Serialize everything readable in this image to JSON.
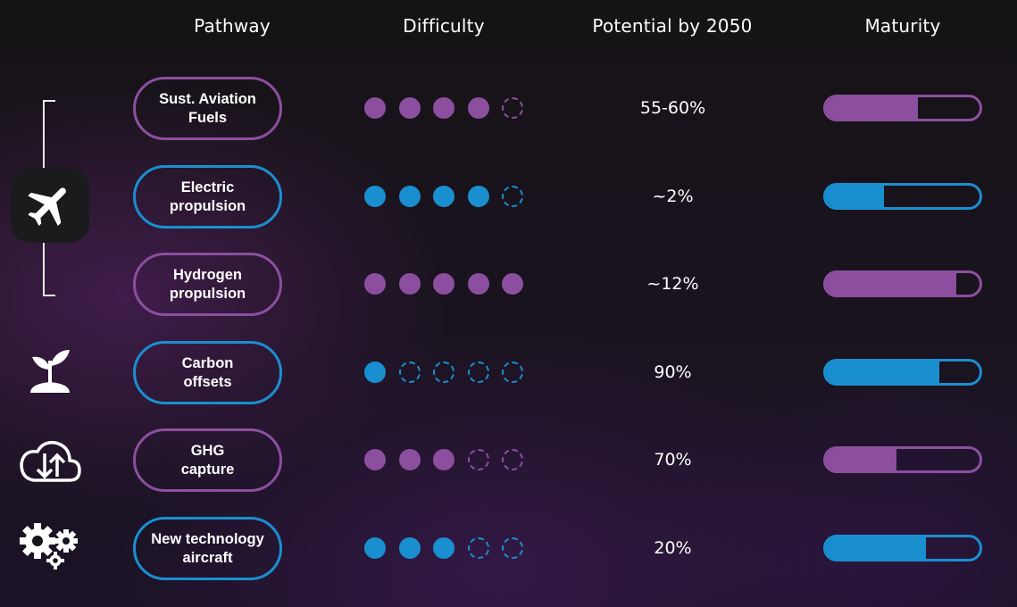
{
  "headers": {
    "pathway": "Pathway",
    "difficulty": "Difficulty",
    "potential": "Potential by 2050",
    "maturity": "Maturity"
  },
  "colors": {
    "purple": "#8c4fa0",
    "blue": "#1a8fd0",
    "text": "#ffffff"
  },
  "icons": [
    "airplane-icon",
    "plant-icon",
    "cloud-upload-download-icon",
    "gears-icon"
  ],
  "rows": [
    {
      "pathway": [
        "Sust. Aviation",
        "Fuels"
      ],
      "color": "purple",
      "difficulty_filled": 4,
      "difficulty_total": 5,
      "potential": "55-60%",
      "maturity": 0.6
    },
    {
      "pathway": [
        "Electric",
        "propulsion"
      ],
      "color": "blue",
      "difficulty_filled": 4,
      "difficulty_total": 5,
      "potential": "~2%",
      "maturity": 0.38
    },
    {
      "pathway": [
        "Hydrogen",
        "propulsion"
      ],
      "color": "purple",
      "difficulty_filled": 5,
      "difficulty_total": 5,
      "potential": "~12%",
      "maturity": 0.85
    },
    {
      "pathway": [
        "Carbon",
        "offsets"
      ],
      "color": "blue",
      "difficulty_filled": 1,
      "difficulty_total": 5,
      "potential": "90%",
      "maturity": 0.74
    },
    {
      "pathway": [
        "GHG",
        "capture"
      ],
      "color": "purple",
      "difficulty_filled": 3,
      "difficulty_total": 5,
      "potential": "70%",
      "maturity": 0.46
    },
    {
      "pathway": [
        "New technology",
        "aircraft"
      ],
      "color": "blue",
      "difficulty_filled": 3,
      "difficulty_total": 5,
      "potential": "20%",
      "maturity": 0.65
    }
  ]
}
